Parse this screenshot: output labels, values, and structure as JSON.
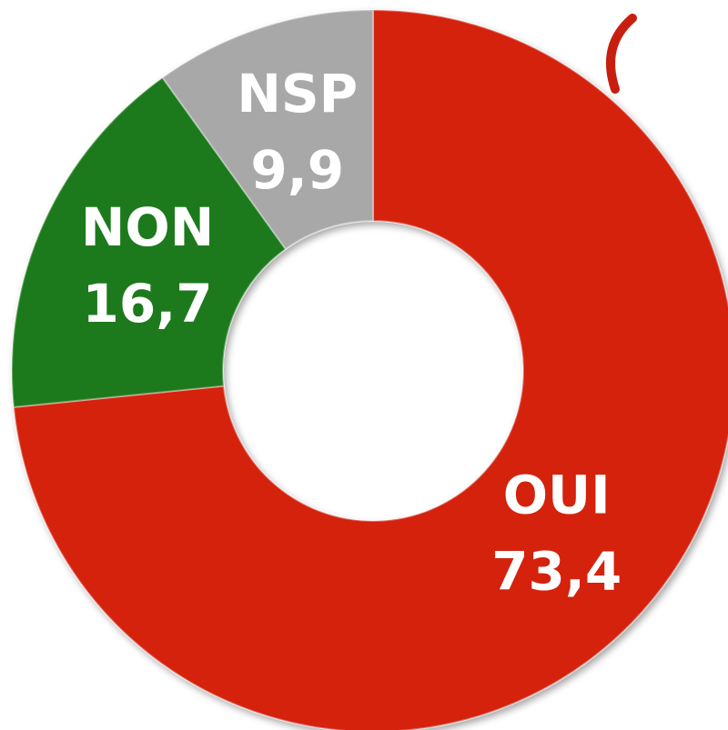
{
  "chart_data": {
    "type": "donut",
    "categories": [
      "OUI",
      "NON",
      "NSP"
    ],
    "values": [
      73.4,
      16.7,
      9.9
    ],
    "value_labels": [
      "73,4",
      "16,7",
      "9,9"
    ],
    "colors": [
      "#d42211",
      "#1b7a1b",
      "#a8a8a8"
    ]
  }
}
